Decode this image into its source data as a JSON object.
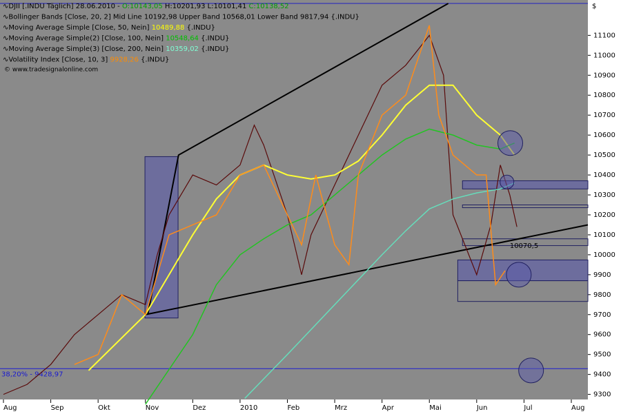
{
  "chart_data": {
    "type": "line",
    "legend_rows": [
      [
        {
          "text": "DJII [.INDU Täglich] 28.06.2010 - ",
          "color": "#000000"
        },
        {
          "text": "O:10143,05",
          "color": "#00a000"
        },
        {
          "text": " H:10201,93 L:10101,41 ",
          "color": "#000000"
        },
        {
          "text": "C:10138,52",
          "color": "#00a000"
        }
      ],
      [
        {
          "text": "Bollinger Bands [Close, 20, 2] Mid Line 10192,98 Upper Band 10568,01 Lower Band 9817,94 {.INDU}",
          "color": "#000000"
        }
      ],
      [
        {
          "text": "Moving Average Simple [Close, 50, Nein] ",
          "color": "#000000"
        },
        {
          "text": "10489,88",
          "color": "#ffff00"
        },
        {
          "text": " {.INDU}",
          "color": "#000000"
        }
      ],
      [
        {
          "text": "Moving Average Simple(2) [Close, 100, Nein] ",
          "color": "#000000"
        },
        {
          "text": "10548,64",
          "color": "#00c000"
        },
        {
          "text": " {.INDU}",
          "color": "#000000"
        }
      ],
      [
        {
          "text": "Moving Average Simple(3) [Close, 200, Nein] ",
          "color": "#000000"
        },
        {
          "text": "10359,02",
          "color": "#7fffd4"
        },
        {
          "text": " {.INDU}",
          "color": "#000000"
        }
      ],
      [
        {
          "text": "Volatility Index [Close, 10, 3] ",
          "color": "#000000"
        },
        {
          "text": "9928,26",
          "color": "#ff8c00"
        },
        {
          "text": " {.INDU}",
          "color": "#000000"
        }
      ]
    ],
    "copyright": "© www.tradesignalonline.com",
    "currency": "$",
    "xlim": [
      0,
      12.35
    ],
    "xticks": [
      {
        "value": 0,
        "label": "Aug"
      },
      {
        "value": 1,
        "label": "Sep"
      },
      {
        "value": 2,
        "label": "Okt"
      },
      {
        "value": 3,
        "label": "Nov"
      },
      {
        "value": 4,
        "label": "Dez"
      },
      {
        "value": 5,
        "label": "2010"
      },
      {
        "value": 6,
        "label": "Feb"
      },
      {
        "value": 7,
        "label": "Mrz"
      },
      {
        "value": 8,
        "label": "Apr"
      },
      {
        "value": 9,
        "label": "Mai"
      },
      {
        "value": 10,
        "label": "Jun"
      },
      {
        "value": 11,
        "label": "Jul"
      },
      {
        "value": 12,
        "label": "Aug"
      }
    ],
    "ylim": [
      9240,
      11260
    ],
    "yticks": [
      9300,
      9400,
      9500,
      9600,
      9700,
      9800,
      9900,
      10000,
      10100,
      10200,
      10300,
      10400,
      10500,
      10600,
      10700,
      10800,
      10900,
      11000,
      11100
    ],
    "series": [
      {
        "name": "Close",
        "color": "#5a0a0a",
        "width": 1.2,
        "x": [
          0,
          0.5,
          1,
          1.5,
          2,
          2.5,
          3,
          3.25,
          3.5,
          4,
          4.5,
          5,
          5.3,
          5.5,
          6,
          6.3,
          6.5,
          7,
          7.5,
          8,
          8.5,
          9,
          9.3,
          9.5,
          10,
          10.3,
          10.5,
          10.7,
          10.85
        ],
        "values": [
          9300,
          9350,
          9450,
          9600,
          9700,
          9800,
          9750,
          10000,
          10200,
          10400,
          10350,
          10450,
          10650,
          10550,
          10200,
          9900,
          10100,
          10350,
          10600,
          10850,
          10950,
          11100,
          10900,
          10200,
          9900,
          10150,
          10450,
          10300,
          10140
        ]
      },
      {
        "name": "MA 50",
        "color": "#ffff33",
        "width": 2,
        "x": [
          1.8,
          3,
          3.5,
          4,
          4.5,
          5,
          5.5,
          6,
          6.5,
          7,
          7.5,
          8,
          8.5,
          9,
          9.5,
          10,
          10.5,
          10.8
        ],
        "values": [
          9420,
          9700,
          9900,
          10100,
          10280,
          10400,
          10450,
          10400,
          10380,
          10400,
          10470,
          10600,
          10750,
          10850,
          10850,
          10700,
          10600,
          10500
        ]
      },
      {
        "name": "MA 100",
        "color": "#22c422",
        "width": 1.5,
        "x": [
          3,
          4,
          4.5,
          5,
          5.5,
          6,
          6.5,
          7,
          7.5,
          8,
          8.5,
          9,
          9.5,
          10,
          10.5,
          10.8
        ],
        "values": [
          9250,
          9600,
          9850,
          10000,
          10080,
          10150,
          10200,
          10300,
          10400,
          10500,
          10580,
          10630,
          10600,
          10550,
          10530,
          10560
        ]
      },
      {
        "name": "MA 200",
        "color": "#66ddbb",
        "width": 1.5,
        "x": [
          5.1,
          6,
          7,
          8,
          8.5,
          9,
          9.5,
          10,
          10.5,
          10.8
        ],
        "values": [
          9280,
          9500,
          9750,
          10000,
          10120,
          10230,
          10280,
          10310,
          10330,
          10360
        ]
      },
      {
        "name": "Volatility Index",
        "color": "#ff8c1a",
        "width": 1.5,
        "x": [
          1.5,
          2,
          2.5,
          3,
          3.5,
          4,
          4.5,
          5,
          5.5,
          6,
          6.3,
          6.6,
          7,
          7.3,
          7.5,
          8,
          8.5,
          9,
          9.2,
          9.5,
          10,
          10.2,
          10.4,
          10.6
        ],
        "values": [
          9450,
          9500,
          9800,
          9700,
          10100,
          10150,
          10200,
          10400,
          10450,
          10200,
          10050,
          10400,
          10050,
          9950,
          10400,
          10700,
          10800,
          11150,
          10700,
          10500,
          10400,
          10400,
          9850,
          9920
        ]
      }
    ],
    "trendlines": [
      {
        "x": [
          3.05,
          3.7,
          9.4
        ],
        "values": [
          9700,
          10500,
          11260
        ]
      },
      {
        "x": [
          3,
          12.35
        ],
        "values": [
          9700,
          10150
        ]
      }
    ],
    "boxes": [
      {
        "x": [
          2.99,
          3.69
        ],
        "values": [
          9683,
          10492
        ],
        "filled": true
      },
      {
        "x": [
          9.7,
          12.35
        ],
        "values": [
          10330,
          10371
        ],
        "filled": true
      },
      {
        "x": [
          9.7,
          12.35
        ],
        "values": [
          10236,
          10250
        ],
        "filled": false
      },
      {
        "x": [
          9.7,
          12.35
        ],
        "values": [
          10046,
          10080
        ],
        "filled": false
      },
      {
        "x": [
          9.6,
          12.35
        ],
        "values": [
          9870,
          9974
        ],
        "filled": true
      },
      {
        "x": [
          9.6,
          12.35
        ],
        "values": [
          9766,
          9870
        ],
        "filled": false
      }
    ],
    "circles": [
      {
        "x": 10.71,
        "value": 10560
      },
      {
        "x": 10.89,
        "value": 9900
      },
      {
        "x": 11.15,
        "value": 9420
      },
      {
        "x": 10.64,
        "value": 10365
      }
    ],
    "level_line": {
      "value": 9428.97,
      "label": "38,20% - 9428,97"
    },
    "level_label": {
      "x": 10.7,
      "value": 10045,
      "label": "10070,5"
    }
  }
}
